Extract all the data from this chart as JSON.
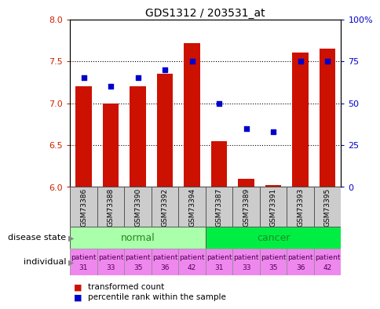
{
  "title": "GDS1312 / 203531_at",
  "samples": [
    "GSM73386",
    "GSM73388",
    "GSM73390",
    "GSM73392",
    "GSM73394",
    "GSM73387",
    "GSM73389",
    "GSM73391",
    "GSM73393",
    "GSM73395"
  ],
  "transformed_count": [
    7.2,
    7.0,
    7.2,
    7.35,
    7.72,
    6.55,
    6.1,
    6.02,
    7.6,
    7.65
  ],
  "percentile_rank": [
    65,
    60,
    65,
    70,
    75,
    50,
    35,
    33,
    75,
    75
  ],
  "bar_color": "#cc1100",
  "dot_color": "#0000cc",
  "ylim_left": [
    6.0,
    8.0
  ],
  "ylim_right": [
    0,
    100
  ],
  "yticks_left": [
    6.0,
    6.5,
    7.0,
    7.5,
    8.0
  ],
  "yticks_right": [
    0,
    25,
    50,
    75,
    100
  ],
  "ytick_labels_right": [
    "0",
    "25",
    "50",
    "75",
    "100%"
  ],
  "tick_label_color_left": "#cc2200",
  "tick_label_color_right": "#0000cc",
  "bar_bottom": 6.0,
  "grid_lines": [
    6.5,
    7.0,
    7.5
  ],
  "bar_width": 0.6,
  "normal_color": "#aaffaa",
  "cancer_color": "#00ee44",
  "individual_color": "#ee88ee",
  "sample_box_color": "#cccccc",
  "individual": [
    "patient\n31",
    "patient\n33",
    "patient\n35",
    "patient\n36",
    "patient\n42",
    "patient\n31",
    "patient\n33",
    "patient\n35",
    "patient\n36",
    "patient\n42"
  ]
}
